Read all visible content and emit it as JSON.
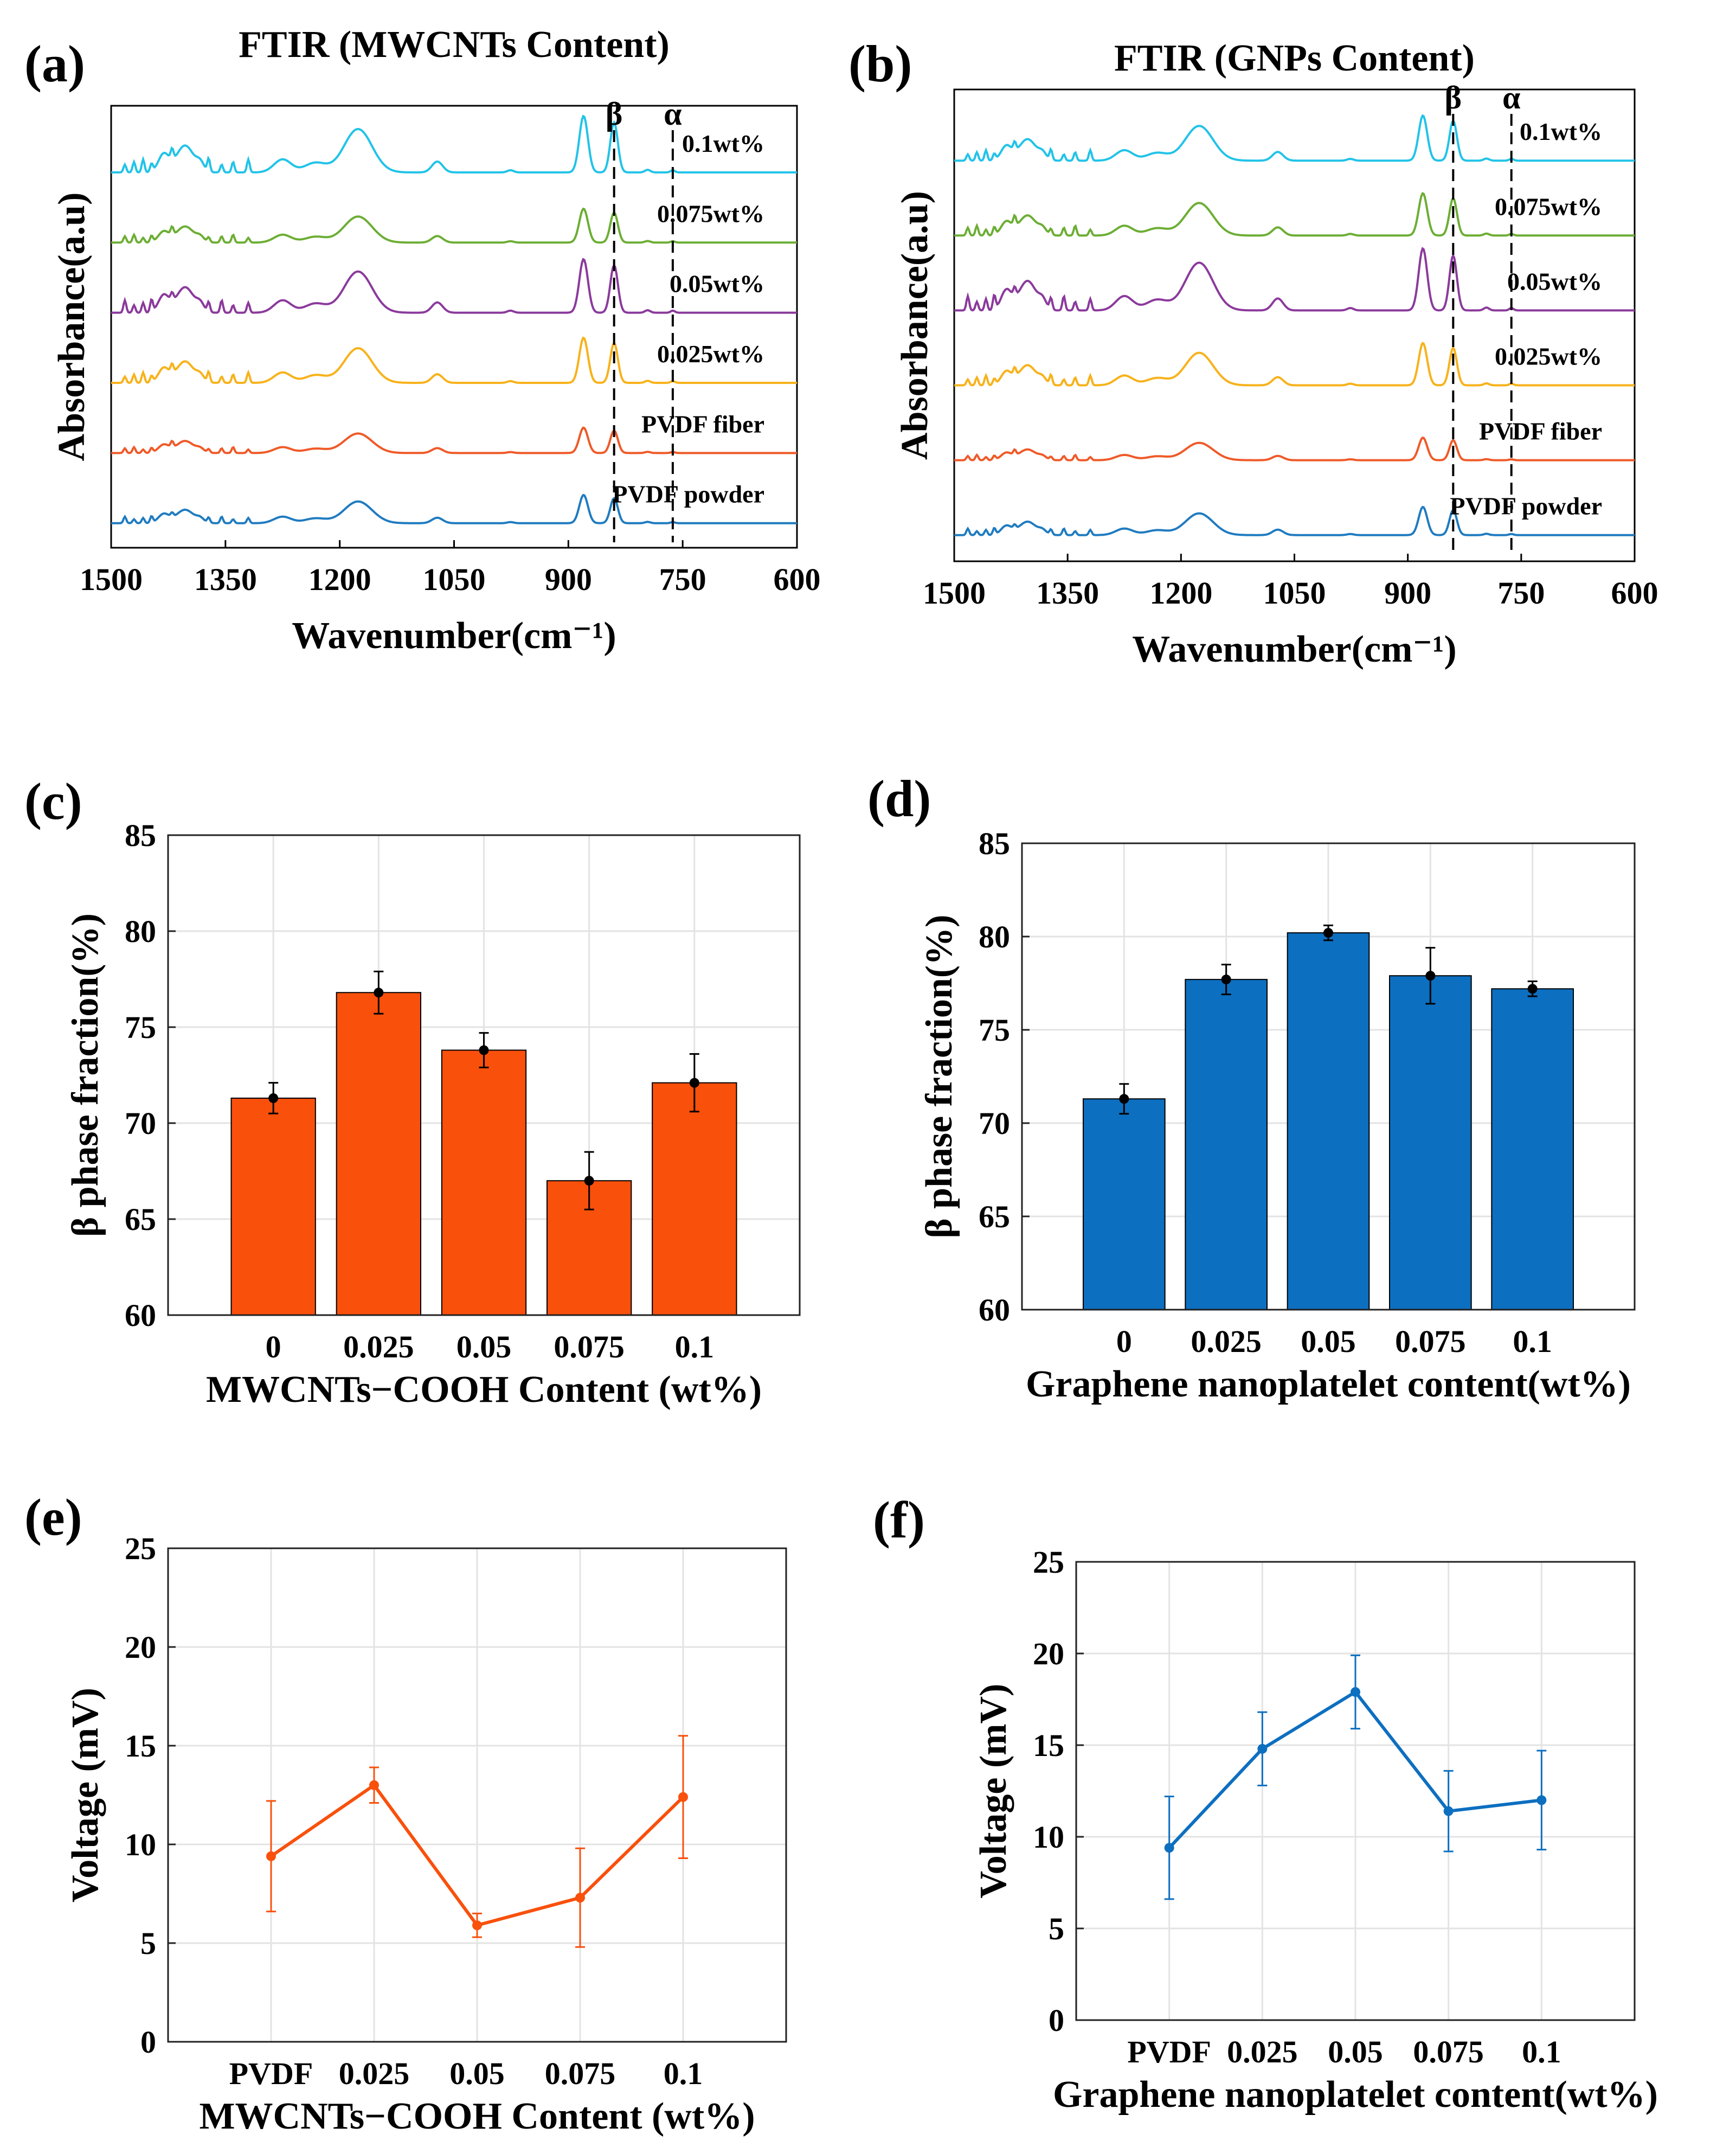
{
  "panels": {
    "a": {
      "letter": "(a)"
    },
    "b": {
      "letter": "(b)"
    },
    "c": {
      "letter": "(c)"
    },
    "d": {
      "letter": "(d)"
    },
    "e": {
      "letter": "(e)"
    },
    "f": {
      "letter": "(f)"
    }
  },
  "chart_data": [
    {
      "id": "a",
      "type": "line",
      "title": "FTIR (MWCNTs Content)",
      "xlabel": "Wavenumber(cm⁻¹)",
      "ylabel": "Absorbance(a.u)",
      "xlim": [
        1500,
        600
      ],
      "xticks": [
        1500,
        1350,
        1200,
        1050,
        900,
        750,
        600
      ],
      "reference_lines": [
        {
          "label": "β",
          "x": 840
        },
        {
          "label": "α",
          "x": 763
        }
      ],
      "series": [
        {
          "name": "0.1wt%",
          "color": "#22c3e8",
          "scale": 1.0
        },
        {
          "name": "0.075wt%",
          "color": "#6cae34",
          "scale": 0.6
        },
        {
          "name": "0.05wt%",
          "color": "#8b3a9c",
          "scale": 0.95
        },
        {
          "name": "0.025wt%",
          "color": "#f7b21b",
          "scale": 0.8
        },
        {
          "name": "PVDF fiber",
          "color": "#ef5a28",
          "scale": 0.45
        },
        {
          "name": "PVDF powder",
          "color": "#1f7bc0",
          "scale": 0.5
        }
      ]
    },
    {
      "id": "b",
      "type": "line",
      "title": "FTIR (GNPs Content)",
      "xlabel": "Wavenumber(cm⁻¹)",
      "ylabel": "Absorbance(a.u)",
      "xlim": [
        1500,
        600
      ],
      "xticks": [
        1500,
        1350,
        1200,
        1050,
        900,
        750,
        600
      ],
      "reference_lines": [
        {
          "label": "β",
          "x": 840
        },
        {
          "label": "α",
          "x": 763
        }
      ],
      "series": [
        {
          "name": "0.1wt%",
          "color": "#22c3e8",
          "scale": 0.8
        },
        {
          "name": "0.075wt%",
          "color": "#6cae34",
          "scale": 0.75
        },
        {
          "name": "0.05wt%",
          "color": "#8b3a9c",
          "scale": 1.1
        },
        {
          "name": "0.025wt%",
          "color": "#f7b21b",
          "scale": 0.75
        },
        {
          "name": "PVDF fiber",
          "color": "#ef5a28",
          "scale": 0.4
        },
        {
          "name": "PVDF powder",
          "color": "#1f7bc0",
          "scale": 0.5
        }
      ]
    },
    {
      "id": "c",
      "type": "bar",
      "color": "#f9500c",
      "categories": [
        "0",
        "0.025",
        "0.05",
        "0.075",
        "0.1"
      ],
      "values": [
        71.3,
        76.8,
        73.8,
        67.0,
        72.1
      ],
      "errors": [
        0.8,
        1.1,
        0.9,
        1.5,
        1.5
      ],
      "xlabel": "MWCNTs−COOH Content (wt%)",
      "ylabel": "β phase fraction(%)",
      "ylim": [
        60,
        85
      ],
      "yticks": [
        60,
        65,
        70,
        75,
        80,
        85
      ],
      "grid": true
    },
    {
      "id": "d",
      "type": "bar",
      "color": "#0d6fc0",
      "categories": [
        "0",
        "0.025",
        "0.05",
        "0.075",
        "0.1"
      ],
      "values": [
        71.3,
        77.7,
        80.2,
        77.9,
        77.2
      ],
      "errors": [
        0.8,
        0.8,
        0.4,
        1.5,
        0.4
      ],
      "xlabel": "Graphene nanoplatelet content(wt%)",
      "ylabel": "β phase fraction(%)",
      "ylim": [
        60,
        85
      ],
      "yticks": [
        60,
        65,
        70,
        75,
        80,
        85
      ],
      "grid": true
    },
    {
      "id": "e",
      "type": "line",
      "color": "#f9500c",
      "categories": [
        "PVDF",
        "0.025",
        "0.05",
        "0.075",
        "0.1"
      ],
      "values": [
        9.4,
        13.0,
        5.9,
        7.3,
        12.4
      ],
      "errors": [
        2.8,
        0.9,
        0.6,
        2.5,
        3.1
      ],
      "xlabel": "MWCNTs−COOH Content (wt%)",
      "ylabel": "Voltage (mV)",
      "ylim": [
        0,
        25
      ],
      "yticks": [
        0,
        5,
        10,
        15,
        20,
        25
      ],
      "grid": true
    },
    {
      "id": "f",
      "type": "line",
      "color": "#0d6fc0",
      "categories": [
        "PVDF",
        "0.025",
        "0.05",
        "0.075",
        "0.1"
      ],
      "values": [
        9.4,
        14.8,
        17.9,
        11.4,
        12.0
      ],
      "errors": [
        2.8,
        2.0,
        2.0,
        2.2,
        2.7
      ],
      "xlabel": "Graphene nanoplatelet content(wt%)",
      "ylabel": "Voltage (mV)",
      "ylim": [
        0,
        25
      ],
      "yticks": [
        0,
        5,
        10,
        15,
        20,
        25
      ],
      "grid": true
    }
  ]
}
